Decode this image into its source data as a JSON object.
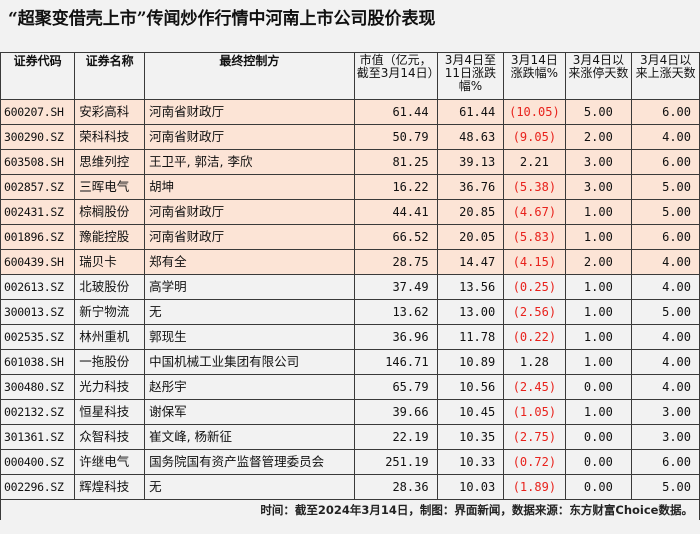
{
  "title": "“超聚变借壳上市”传闻炒作行情中河南上市公司股价表现",
  "columns": [
    "证券代码",
    "证券名称",
    "最终控制方",
    "市值（亿元，截至3月14日）",
    "3月4日至11日涨跌幅%",
    "3月14日涨跌幅%",
    "3月4日以来涨停天数",
    "3月4日以来上涨天数"
  ],
  "rows": [
    {
      "code": "600207.SH",
      "name": "安彩高科",
      "controller": "河南省财政厅",
      "mkt_cap": "61.44",
      "chg_4_11": "61.44",
      "chg_14": "(10.05)",
      "chg_14_negative": true,
      "limit_up_days": "5.00",
      "up_days": "6.00",
      "highlight": true
    },
    {
      "code": "300290.SZ",
      "name": "荣科科技",
      "controller": "河南省财政厅",
      "mkt_cap": "50.79",
      "chg_4_11": "48.63",
      "chg_14": "(9.05)",
      "chg_14_negative": true,
      "limit_up_days": "2.00",
      "up_days": "4.00",
      "highlight": true
    },
    {
      "code": "603508.SH",
      "name": "思维列控",
      "controller": "王卫平, 郭洁, 李欣",
      "mkt_cap": "81.25",
      "chg_4_11": "39.13",
      "chg_14": "2.21",
      "chg_14_negative": false,
      "limit_up_days": "3.00",
      "up_days": "6.00",
      "highlight": true
    },
    {
      "code": "002857.SZ",
      "name": "三晖电气",
      "controller": "胡坤",
      "mkt_cap": "16.22",
      "chg_4_11": "36.76",
      "chg_14": "(5.38)",
      "chg_14_negative": true,
      "limit_up_days": "3.00",
      "up_days": "5.00",
      "highlight": true
    },
    {
      "code": "002431.SZ",
      "name": "棕榈股份",
      "controller": "河南省财政厅",
      "mkt_cap": "44.41",
      "chg_4_11": "20.85",
      "chg_14": "(4.67)",
      "chg_14_negative": true,
      "limit_up_days": "1.00",
      "up_days": "5.00",
      "highlight": true
    },
    {
      "code": "001896.SZ",
      "name": "豫能控股",
      "controller": "河南省财政厅",
      "mkt_cap": "66.52",
      "chg_4_11": "20.05",
      "chg_14": "(5.83)",
      "chg_14_negative": true,
      "limit_up_days": "1.00",
      "up_days": "6.00",
      "highlight": true
    },
    {
      "code": "600439.SH",
      "name": "瑞贝卡",
      "controller": "郑有全",
      "mkt_cap": "28.75",
      "chg_4_11": "14.47",
      "chg_14": "(4.15)",
      "chg_14_negative": true,
      "limit_up_days": "2.00",
      "up_days": "4.00",
      "highlight": true
    },
    {
      "code": "002613.SZ",
      "name": "北玻股份",
      "controller": "高学明",
      "mkt_cap": "37.49",
      "chg_4_11": "13.56",
      "chg_14": "(0.25)",
      "chg_14_negative": true,
      "limit_up_days": "1.00",
      "up_days": "4.00",
      "highlight": false
    },
    {
      "code": "300013.SZ",
      "name": "新宁物流",
      "controller": "无",
      "mkt_cap": "13.62",
      "chg_4_11": "13.00",
      "chg_14": "(2.56)",
      "chg_14_negative": true,
      "limit_up_days": "1.00",
      "up_days": "5.00",
      "highlight": false
    },
    {
      "code": "002535.SZ",
      "name": "林州重机",
      "controller": "郭现生",
      "mkt_cap": "36.96",
      "chg_4_11": "11.78",
      "chg_14": "(0.22)",
      "chg_14_negative": true,
      "limit_up_days": "1.00",
      "up_days": "4.00",
      "highlight": false
    },
    {
      "code": "601038.SH",
      "name": "一拖股份",
      "controller": "中国机械工业集团有限公司",
      "mkt_cap": "146.71",
      "chg_4_11": "10.89",
      "chg_14": "1.28",
      "chg_14_negative": false,
      "limit_up_days": "1.00",
      "up_days": "4.00",
      "highlight": false
    },
    {
      "code": "300480.SZ",
      "name": "光力科技",
      "controller": "赵彤宇",
      "mkt_cap": "65.79",
      "chg_4_11": "10.56",
      "chg_14": "(2.45)",
      "chg_14_negative": true,
      "limit_up_days": "0.00",
      "up_days": "4.00",
      "highlight": false
    },
    {
      "code": "002132.SZ",
      "name": "恒星科技",
      "controller": "谢保军",
      "mkt_cap": "39.66",
      "chg_4_11": "10.45",
      "chg_14": "(1.05)",
      "chg_14_negative": true,
      "limit_up_days": "1.00",
      "up_days": "3.00",
      "highlight": false
    },
    {
      "code": "301361.SZ",
      "name": "众智科技",
      "controller": "崔文峰, 杨新征",
      "mkt_cap": "22.19",
      "chg_4_11": "10.35",
      "chg_14": "(2.75)",
      "chg_14_negative": true,
      "limit_up_days": "0.00",
      "up_days": "3.00",
      "highlight": false
    },
    {
      "code": "000400.SZ",
      "name": "许继电气",
      "controller": "国务院国有资产监督管理委员会",
      "mkt_cap": "251.19",
      "chg_4_11": "10.33",
      "chg_14": "(0.72)",
      "chg_14_negative": true,
      "limit_up_days": "0.00",
      "up_days": "6.00",
      "highlight": false
    },
    {
      "code": "002296.SZ",
      "name": "辉煌科技",
      "controller": "无",
      "mkt_cap": "28.36",
      "chg_4_11": "10.03",
      "chg_14": "(1.89)",
      "chg_14_negative": true,
      "limit_up_days": "0.00",
      "up_days": "5.00",
      "highlight": false
    }
  ],
  "footer": "时间：截至2024年3月14日，制图：界面新闻，数据来源：东方财富Choice数据。",
  "colors": {
    "highlight_row": "#fce4d6",
    "background": "#f2f2f2",
    "negative_text": "#e8221c",
    "border": "#3a3a3a"
  }
}
